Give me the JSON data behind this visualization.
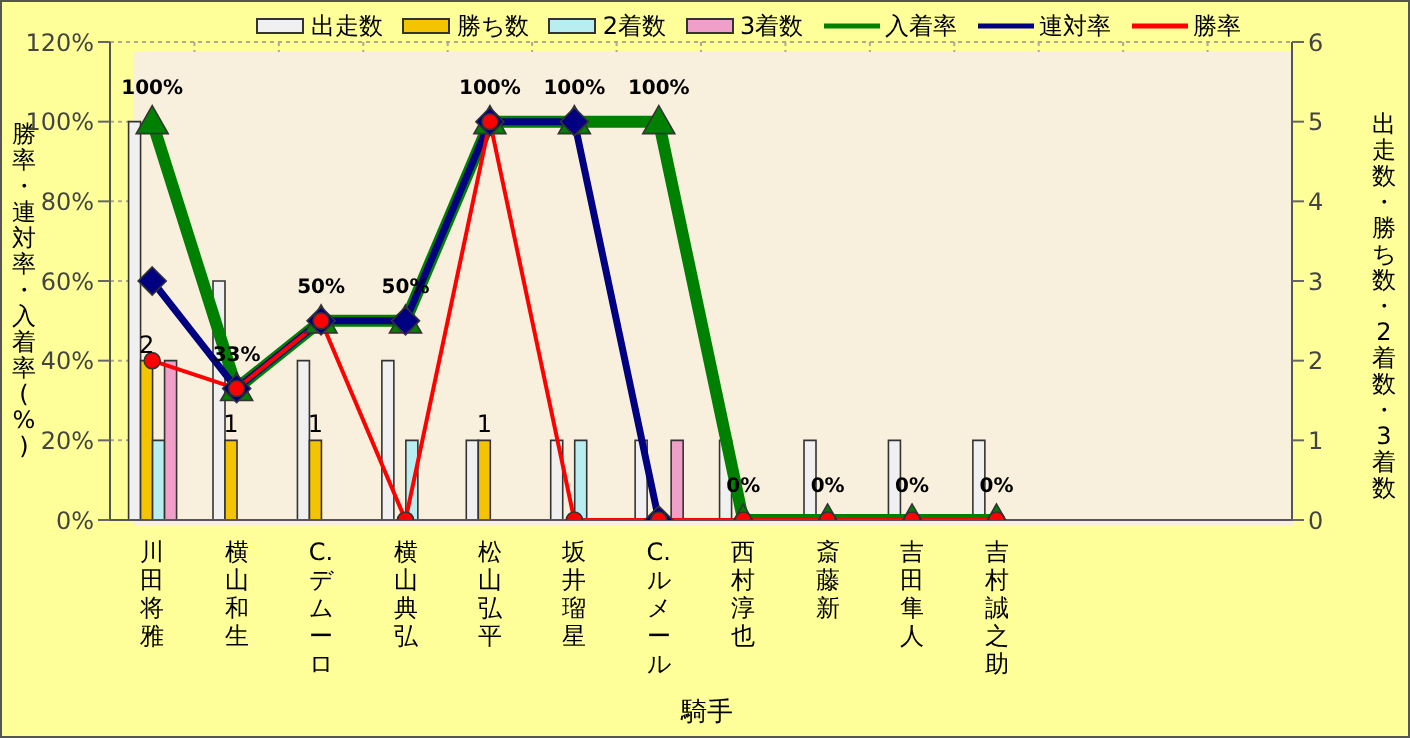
{
  "chart_data": {
    "type": "bar",
    "xlabel": "騎手",
    "ylabel": "勝率・連対率・入着率(%)",
    "y2label": "出走数・勝ち数・2着数・3着数",
    "categories": [
      "川田将雅",
      "横山和生",
      "C.デムーロ",
      "横山典弘",
      "松山弘平",
      "坂井瑠星",
      "C.ルメール",
      "西村淳也",
      "斎藤新",
      "吉田隼人",
      "吉村誠之助",
      null,
      null,
      null
    ],
    "series": [
      {
        "name": "出走数",
        "axis": "y2",
        "color": "#f0f0f0",
        "values": [
          5,
          3,
          2,
          2,
          1,
          1,
          1,
          1,
          1,
          1,
          1,
          null,
          null,
          null
        ]
      },
      {
        "name": "勝ち数",
        "axis": "y2",
        "color": "#f5c400",
        "values": [
          2,
          1,
          1,
          0,
          1,
          0,
          0,
          0,
          0,
          0,
          0,
          null,
          null,
          null
        ],
        "value_labels": [
          "2",
          "1",
          "1",
          null,
          "1",
          null,
          null,
          null,
          null,
          null,
          null,
          null,
          null,
          null
        ]
      },
      {
        "name": "2着数",
        "axis": "y2",
        "color": "#b8eef0",
        "values": [
          1,
          0,
          0,
          1,
          0,
          1,
          0,
          0,
          0,
          0,
          0,
          null,
          null,
          null
        ]
      },
      {
        "name": "3着数",
        "axis": "y2",
        "color": "#f0a0c8",
        "values": [
          2,
          0,
          0,
          0,
          0,
          0,
          1,
          0,
          0,
          0,
          0,
          null,
          null,
          null
        ]
      },
      {
        "name": "入着率",
        "type": "line",
        "marker": "triangle",
        "color": "#008000",
        "values": [
          100,
          33,
          50,
          50,
          100,
          100,
          100,
          0,
          0,
          0,
          0,
          null,
          null,
          null
        ],
        "value_labels": [
          "100%",
          "33%",
          "50%",
          "50%",
          "100%",
          "100%",
          "100%",
          "0%",
          "0%",
          "0%",
          "0%",
          null,
          null,
          null
        ]
      },
      {
        "name": "連対率",
        "type": "line",
        "marker": "diamond",
        "color": "#000080",
        "values": [
          60,
          33,
          50,
          50,
          100,
          100,
          0,
          null,
          null,
          null,
          null,
          null,
          null,
          null
        ]
      },
      {
        "name": "勝率",
        "type": "line",
        "marker": "circle",
        "color": "#ff0000",
        "values": [
          40,
          33,
          50,
          0,
          100,
          0,
          0,
          0,
          0,
          0,
          0,
          null,
          null,
          null
        ]
      }
    ],
    "ylim": [
      0,
      120
    ],
    "yticks": [
      {
        "value": 0,
        "label": "0%"
      },
      {
        "value": 20,
        "label": "20%"
      },
      {
        "value": 40,
        "label": "40%"
      },
      {
        "value": 60,
        "label": "60%"
      },
      {
        "value": 80,
        "label": "80%"
      },
      {
        "value": 100,
        "label": "100%"
      },
      {
        "value": 120,
        "label": "120%"
      }
    ],
    "y2lim": [
      0,
      6
    ],
    "y2ticks": [
      0,
      1,
      2,
      3,
      4,
      5,
      6
    ],
    "grid": true,
    "legend": "top"
  }
}
